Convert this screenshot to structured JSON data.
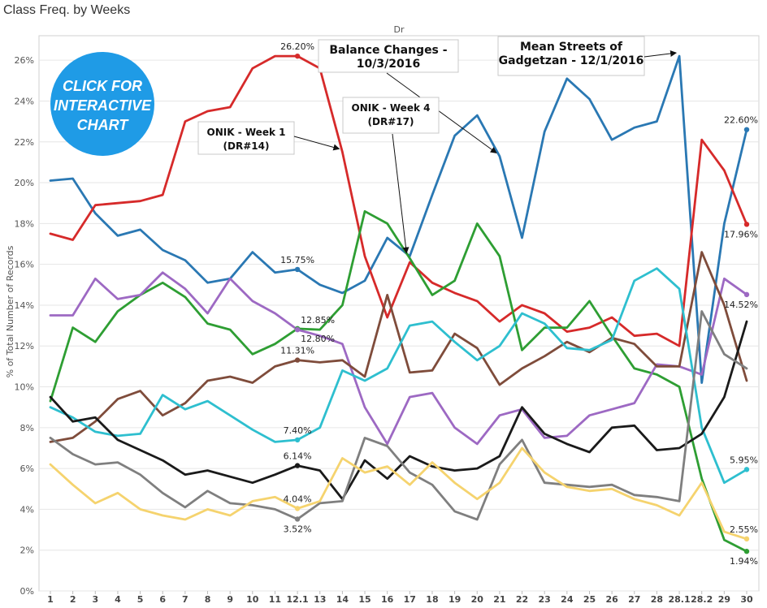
{
  "title": "Class Freq. by Weeks",
  "badge": {
    "line1": "CLICK FOR",
    "line2": "INTERACTIVE",
    "line3": "CHART",
    "color": "#1f9be6"
  },
  "chart_data": {
    "type": "line",
    "subtitle": "Dr",
    "ylabel": "% of Total Number of Records",
    "xlabel": "",
    "ylim": [
      0,
      27.2
    ],
    "yticks": [
      0,
      2,
      4,
      6,
      8,
      10,
      12,
      14,
      16,
      18,
      20,
      22,
      24,
      26
    ],
    "ytick_labels": [
      "0%",
      "2%",
      "4%",
      "6%",
      "8%",
      "10%",
      "12%",
      "14%",
      "16%",
      "18%",
      "20%",
      "22%",
      "24%",
      "26%"
    ],
    "grid": true,
    "categories": [
      "1",
      "2",
      "3",
      "4",
      "5",
      "6",
      "7",
      "8",
      "9",
      "10",
      "11",
      "12.1",
      "13",
      "14",
      "15",
      "16",
      "17",
      "18",
      "19",
      "20",
      "21",
      "22",
      "23",
      "24",
      "25",
      "26",
      "27",
      "28",
      "28.1",
      "28.2",
      "29",
      "30"
    ],
    "series": [
      {
        "color": "#2a78b3",
        "values": [
          20.1,
          20.2,
          18.5,
          17.4,
          17.7,
          16.7,
          16.2,
          15.1,
          15.3,
          16.6,
          15.6,
          15.75,
          15.0,
          14.6,
          15.2,
          17.3,
          16.4,
          19.4,
          22.3,
          23.3,
          21.3,
          17.3,
          22.5,
          25.1,
          24.1,
          22.1,
          22.7,
          23.0,
          26.2,
          10.2,
          18.0,
          22.6
        ]
      },
      {
        "color": "#d62a2a",
        "values": [
          17.5,
          17.2,
          18.9,
          19.0,
          19.1,
          19.4,
          23.0,
          23.5,
          23.7,
          25.6,
          26.2,
          26.2,
          25.6,
          21.5,
          16.4,
          13.4,
          16.1,
          15.1,
          14.6,
          14.2,
          13.2,
          14.0,
          13.6,
          12.7,
          12.9,
          13.4,
          12.5,
          12.6,
          12.0,
          22.1,
          20.6,
          17.96
        ]
      },
      {
        "color": "#2e9e33",
        "values": [
          9.3,
          12.9,
          12.2,
          13.7,
          14.5,
          15.1,
          14.4,
          13.1,
          12.8,
          11.6,
          12.1,
          12.85,
          12.8,
          14.0,
          18.6,
          18.0,
          16.3,
          14.5,
          15.2,
          18.0,
          16.4,
          11.8,
          12.9,
          12.9,
          14.2,
          12.5,
          10.9,
          10.6,
          10.0,
          5.5,
          2.5,
          1.94
        ]
      },
      {
        "color": "#9d69c3",
        "values": [
          13.5,
          13.5,
          15.3,
          14.3,
          14.5,
          15.6,
          14.8,
          13.6,
          15.3,
          14.2,
          13.6,
          12.8,
          12.5,
          12.1,
          9.0,
          7.2,
          9.5,
          9.7,
          8.0,
          7.2,
          8.6,
          8.9,
          7.5,
          7.6,
          8.6,
          8.9,
          9.2,
          11.1,
          11.0,
          10.6,
          15.3,
          14.52
        ]
      },
      {
        "color": "#7f4c3b",
        "values": [
          7.3,
          7.5,
          8.3,
          9.4,
          9.8,
          8.6,
          9.2,
          10.3,
          10.5,
          10.2,
          11.0,
          11.31,
          11.2,
          11.3,
          10.5,
          14.5,
          10.7,
          10.8,
          12.6,
          11.9,
          10.1,
          10.9,
          11.5,
          12.2,
          11.7,
          12.4,
          12.1,
          11.0,
          11.0,
          16.6,
          14.0,
          10.3
        ]
      },
      {
        "color": "#2ebfcf",
        "values": [
          9.0,
          8.5,
          7.8,
          7.6,
          7.7,
          9.6,
          8.9,
          9.3,
          8.6,
          7.9,
          7.3,
          7.4,
          8.0,
          10.8,
          10.3,
          10.9,
          13.0,
          13.2,
          12.2,
          11.3,
          12.0,
          13.6,
          13.1,
          11.9,
          11.8,
          12.3,
          15.2,
          15.8,
          14.8,
          8.0,
          5.3,
          5.95
        ]
      },
      {
        "color": "#1a1a1a",
        "values": [
          9.5,
          8.3,
          8.5,
          7.4,
          6.9,
          6.4,
          5.7,
          5.9,
          5.6,
          5.3,
          5.7,
          6.14,
          5.9,
          4.5,
          6.4,
          5.5,
          6.6,
          6.1,
          5.9,
          6.0,
          6.6,
          9.0,
          7.7,
          7.2,
          6.8,
          8.0,
          8.1,
          6.9,
          7.0,
          7.7,
          9.5,
          13.2
        ]
      },
      {
        "color": "#7f7f7f",
        "values": [
          7.5,
          6.7,
          6.2,
          6.3,
          5.7,
          4.8,
          4.1,
          4.9,
          4.3,
          4.2,
          4.0,
          3.52,
          4.3,
          4.4,
          7.5,
          7.1,
          5.8,
          5.2,
          3.9,
          3.5,
          6.2,
          7.4,
          5.3,
          5.2,
          5.1,
          5.2,
          4.7,
          4.6,
          4.4,
          13.7,
          11.6,
          10.9
        ]
      },
      {
        "color": "#f5d36e",
        "values": [
          6.2,
          5.2,
          4.3,
          4.8,
          4.0,
          3.7,
          3.5,
          4.0,
          3.7,
          4.4,
          4.6,
          4.04,
          4.4,
          6.5,
          5.8,
          6.1,
          5.2,
          6.3,
          5.3,
          4.5,
          5.3,
          7.0,
          5.8,
          5.1,
          4.9,
          5.0,
          4.5,
          4.2,
          3.7,
          5.3,
          2.9,
          2.55
        ]
      }
    ],
    "data_labels": [
      {
        "text": "26.20%",
        "series": 1,
        "index": 11,
        "pos": "above"
      },
      {
        "text": "15.75%",
        "series": 0,
        "index": 11,
        "pos": "above"
      },
      {
        "text": "12.85%",
        "series": 2,
        "index": 11,
        "pos": "above-right"
      },
      {
        "text": "12.80%",
        "series": 3,
        "index": 11,
        "pos": "below-right"
      },
      {
        "text": "11.31%",
        "series": 4,
        "index": 11,
        "pos": "above"
      },
      {
        "text": "7.40%",
        "series": 5,
        "index": 11,
        "pos": "above"
      },
      {
        "text": "6.14%",
        "series": 6,
        "index": 11,
        "pos": "above"
      },
      {
        "text": "4.04%",
        "series": 8,
        "index": 11,
        "pos": "above"
      },
      {
        "text": "3.52%",
        "series": 7,
        "index": 11,
        "pos": "below"
      },
      {
        "text": "22.60%",
        "series": 0,
        "index": 31,
        "pos": "above"
      },
      {
        "text": "17.96%",
        "series": 1,
        "index": 31,
        "pos": "below"
      },
      {
        "text": "14.52%",
        "series": 3,
        "index": 31,
        "pos": "below"
      },
      {
        "text": "5.95%",
        "series": 5,
        "index": 31,
        "pos": "above"
      },
      {
        "text": "2.55%",
        "series": 8,
        "index": 31,
        "pos": "above"
      },
      {
        "text": "1.94%",
        "series": 2,
        "index": 31,
        "pos": "below"
      }
    ],
    "annotations": [
      {
        "id": "balance",
        "lines": [
          "Balance Changes -",
          "10/3/2016"
        ],
        "target_series": 0,
        "target_index": 20
      },
      {
        "id": "mean",
        "lines": [
          "Mean Streets of",
          "Gadgetzan - 12/1/2016"
        ],
        "target_series": 0,
        "target_index": 28
      },
      {
        "id": "onik4",
        "lines": [
          "ONIK - Week 4",
          "(DR#17)"
        ],
        "target_series": 0,
        "target_index": 16
      },
      {
        "id": "onik1",
        "lines": [
          "ONIK - Week 1",
          "(DR#14)"
        ],
        "target_series": 1,
        "target_index": 13
      }
    ]
  }
}
